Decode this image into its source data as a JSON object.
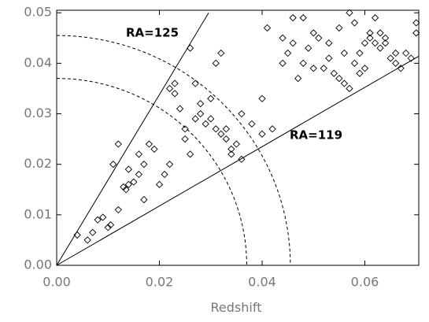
{
  "chart_data": {
    "type": "scatter",
    "x_label": "Redshift",
    "xlim": [
      0,
      0.0705
    ],
    "ylim": [
      0,
      0.0505
    ],
    "xticks": [
      {
        "value": 0,
        "label": "0.00"
      },
      {
        "value": 0.02,
        "label": "0.02"
      },
      {
        "value": 0.04,
        "label": "0.04"
      },
      {
        "value": 0.06,
        "label": "0.06"
      }
    ],
    "yticks": [
      {
        "value": 0,
        "label": "0.00"
      },
      {
        "value": 0.01,
        "label": "0.01"
      },
      {
        "value": 0.02,
        "label": "0.02"
      },
      {
        "value": 0.03,
        "label": "0.03"
      },
      {
        "value": 0.04,
        "label": "0.04"
      },
      {
        "value": 0.05,
        "label": "0.05"
      }
    ],
    "boundaries": [
      {
        "label": "RA=125",
        "x": [
          0,
          0.0296
        ],
        "y": [
          0,
          0.05
        ]
      },
      {
        "label": "RA=119",
        "x": [
          0,
          0.0705
        ],
        "y": [
          0,
          0.0414
        ]
      }
    ],
    "arcs": [
      0.037,
      0.0455
    ],
    "color": "#000000",
    "x": [
      0.004,
      0.006,
      0.007,
      0.008,
      0.009,
      0.01,
      0.0105,
      0.012,
      0.013,
      0.0135,
      0.014,
      0.015,
      0.016,
      0.016,
      0.017,
      0.018,
      0.019,
      0.014,
      0.012,
      0.011,
      0.017,
      0.02,
      0.021,
      0.022,
      0.022,
      0.023,
      0.023,
      0.024,
      0.025,
      0.025,
      0.026,
      0.027,
      0.028,
      0.029,
      0.03,
      0.031,
      0.032,
      0.033,
      0.034,
      0.034,
      0.035,
      0.036,
      0.033,
      0.03,
      0.028,
      0.027,
      0.031,
      0.032,
      0.026,
      0.036,
      0.038,
      0.04,
      0.042,
      0.04,
      0.041,
      0.044,
      0.045,
      0.046,
      0.048,
      0.05,
      0.049,
      0.051,
      0.052,
      0.053,
      0.054,
      0.055,
      0.056,
      0.057,
      0.058,
      0.059,
      0.06,
      0.061,
      0.062,
      0.063,
      0.064,
      0.065,
      0.066,
      0.067,
      0.068,
      0.069,
      0.07,
      0.07,
      0.062,
      0.058,
      0.055,
      0.047,
      0.048,
      0.056,
      0.059,
      0.06,
      0.061,
      0.063,
      0.064,
      0.057,
      0.053,
      0.046,
      0.044,
      0.05,
      0.066
    ],
    "y": [
      0.006,
      0.005,
      0.0065,
      0.009,
      0.0095,
      0.0075,
      0.008,
      0.011,
      0.0155,
      0.015,
      0.016,
      0.0165,
      0.018,
      0.022,
      0.02,
      0.024,
      0.023,
      0.019,
      0.024,
      0.02,
      0.013,
      0.016,
      0.018,
      0.02,
      0.035,
      0.034,
      0.036,
      0.031,
      0.027,
      0.025,
      0.022,
      0.029,
      0.03,
      0.028,
      0.029,
      0.027,
      0.026,
      0.025,
      0.023,
      0.022,
      0.024,
      0.021,
      0.027,
      0.033,
      0.032,
      0.036,
      0.04,
      0.042,
      0.043,
      0.03,
      0.028,
      0.026,
      0.027,
      0.033,
      0.047,
      0.04,
      0.042,
      0.049,
      0.049,
      0.046,
      0.043,
      0.045,
      0.039,
      0.041,
      0.038,
      0.037,
      0.036,
      0.035,
      0.04,
      0.042,
      0.044,
      0.046,
      0.044,
      0.043,
      0.045,
      0.041,
      0.04,
      0.039,
      0.042,
      0.041,
      0.048,
      0.046,
      0.049,
      0.048,
      0.047,
      0.037,
      0.04,
      0.042,
      0.038,
      0.039,
      0.045,
      0.046,
      0.044,
      0.05,
      0.044,
      0.044,
      0.045,
      0.039,
      0.042
    ]
  }
}
